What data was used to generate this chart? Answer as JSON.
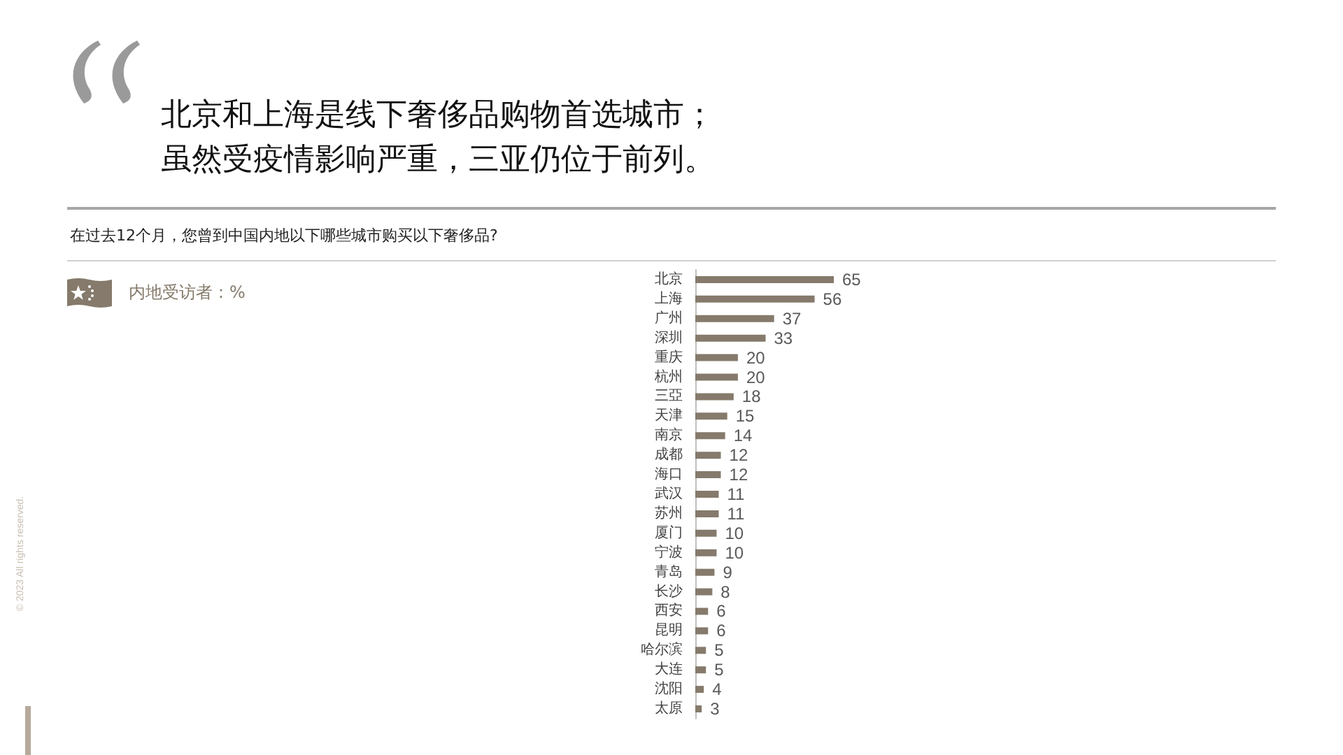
{
  "chart_data": {
    "type": "bar",
    "orientation": "horizontal",
    "title": "北京和上海是线下奢侈品购物首选城市；虽然受疫情影响严重，三亚仍位于前列。",
    "subtitle": "在过去12个月，您曾到中国内地以下哪些城市购买以下奢侈品?",
    "categories": [
      "北京",
      "上海",
      "广州",
      "深圳",
      "重庆",
      "杭州",
      "三亞",
      "天津",
      "南京",
      "成都",
      "海口",
      "武汉",
      "苏州",
      "厦门",
      "宁波",
      "青岛",
      "长沙",
      "西安",
      "昆明",
      "哈尔滨",
      "大连",
      "沈阳",
      "太原"
    ],
    "values": [
      65,
      56,
      37,
      33,
      20,
      20,
      18,
      15,
      14,
      12,
      12,
      11,
      11,
      10,
      10,
      9,
      8,
      6,
      6,
      5,
      5,
      4,
      3
    ],
    "color": "#857a6b",
    "data_labels": true,
    "annotations": [
      "内地受访者：%",
      "© 2023 All rights reserved."
    ]
  }
}
